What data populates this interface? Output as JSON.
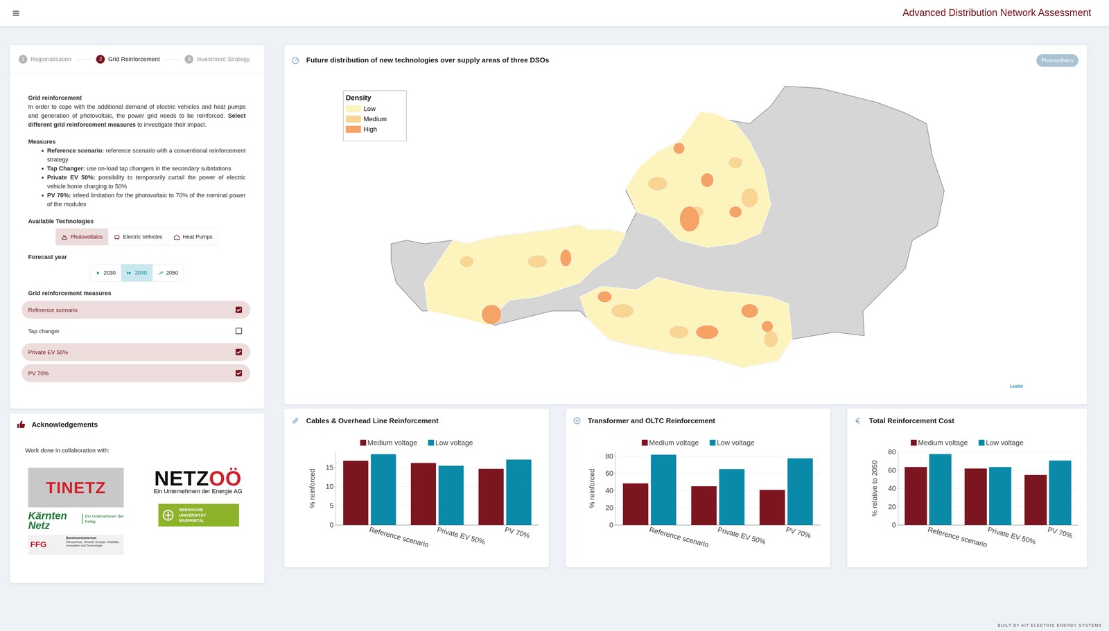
{
  "header": {
    "title": "Advanced Distribution Network Assessment"
  },
  "footer": "BUILT BY AIT ELECTRIC ENERGY SYSTEMS",
  "stepper": [
    {
      "number": 1,
      "label": "Regionalisation",
      "active": false
    },
    {
      "number": 2,
      "label": "Grid Reinforcement",
      "active": true
    },
    {
      "number": 3,
      "label": "Investment Strategy",
      "active": false
    }
  ],
  "panel": {
    "heading": "Grid reinforcement",
    "intro": "In order to cope with the additional demand of electric vehicles and heat pumps and generation of photovoltaic, the power grid needs to be reinforced.",
    "intro_bold": "Select different grid reinforcement measures",
    "intro_end": "to investigate their impact.",
    "measures_heading": "Measures",
    "measures": [
      {
        "name": "Reference scenario:",
        "text": "reference scenario with a conventional reinforcement strategy"
      },
      {
        "name": "Tap Changer:",
        "text": "use on-load tap changers in the secondary substations"
      },
      {
        "name": "Private EV 50%:",
        "text": "possibility to temporarily curtail the power of electric vehicle home charging to 50%"
      },
      {
        "name": "PV 70%:",
        "text": "infeed limitation for the photovoltaic to 70% of the nominal power of the modules"
      }
    ],
    "technologies_heading": "Available Technologies",
    "technologies": [
      {
        "label": "Photovoltaics",
        "active": true
      },
      {
        "label": "Electric Vehicles",
        "active": false
      },
      {
        "label": "Heat Pumps",
        "active": false
      }
    ],
    "year_heading": "Forecast year",
    "years": [
      {
        "label": "2030",
        "active": false
      },
      {
        "label": "2040",
        "active": true
      },
      {
        "label": "2050",
        "active": false
      }
    ],
    "reinforcement_heading": "Grid reinforcement measures",
    "reinforcement_measures": [
      {
        "label": "Reference scenario",
        "checked": true
      },
      {
        "label": "Tap changer",
        "checked": false
      },
      {
        "label": "Private EV 50%",
        "checked": true
      },
      {
        "label": "PV 70%",
        "checked": true
      }
    ]
  },
  "acknowledgements": {
    "title": "Acknowledgements",
    "text": "Work done in collaboration with:",
    "logos": {
      "tinetz": "TINETZ",
      "netzooe": {
        "name": "NETZOÖ",
        "subtitle": "Ein Unternehmen der Energie AG"
      },
      "kaernten": {
        "name": "Kärnten Netz",
        "subtitle": "Ein Unternehmen der Kelag"
      },
      "wuppertal": [
        "BERGISCHE",
        "UNIVERSITÄT",
        "WUPPERTAL"
      ],
      "ffg": {
        "name": "FFG",
        "ministry": "Bundesministerium",
        "subtitle": "Klimaschutz, Umwelt, Energie, Mobilität, Innovation und Technologie"
      }
    }
  },
  "map": {
    "title": "Future distribution of new technologies over supply areas of three DSOs",
    "badge": "Photovoltaics",
    "legend": {
      "title": "Density",
      "levels": [
        {
          "label": "Low",
          "color": "#fdf4bd"
        },
        {
          "label": "Medium",
          "color": "#f8d593"
        },
        {
          "label": "High",
          "color": "#f5a366"
        }
      ]
    },
    "attribution": "Leaflet"
  },
  "chart_data": [
    {
      "type": "bar",
      "title": "Cables & Overhead Line Reinforcement",
      "y_label": "% reinforced",
      "categories": [
        "Reference scenario",
        "Private EV 50%",
        "PV 70%"
      ],
      "series": [
        {
          "name": "Medium voltage",
          "color": "#7b1520",
          "values": [
            16.7,
            16.1,
            14.6
          ]
        },
        {
          "name": "Low voltage",
          "color": "#0a8aa8",
          "values": [
            18.4,
            15.4,
            17.0
          ]
        }
      ],
      "ylim": [
        0,
        19
      ],
      "yticks": [
        0,
        5,
        10,
        15
      ],
      "grid": true,
      "legend": "top"
    },
    {
      "type": "bar",
      "title": "Transformer and OLTC Reinforcement",
      "y_label": "% reinforced",
      "categories": [
        "Reference scenario",
        "Private EV 50%",
        "PV 70%"
      ],
      "series": [
        {
          "name": "Medium voltage",
          "color": "#7b1520",
          "values": [
            48.3,
            45.0,
            40.8
          ]
        },
        {
          "name": "Low voltage",
          "color": "#0a8aa8",
          "values": [
            81.7,
            65.0,
            77.5
          ]
        }
      ],
      "ylim": [
        0,
        85
      ],
      "yticks": [
        0,
        20,
        40,
        60,
        80
      ],
      "grid": true,
      "legend": "top"
    },
    {
      "type": "bar",
      "title": "Total Reinforcement Cost",
      "y_label": "% relative to 2050",
      "categories": [
        "Reference scenario",
        "Private EV 50%",
        "PV 70%"
      ],
      "series": [
        {
          "name": "Medium voltage",
          "color": "#7b1520",
          "values": [
            63.4,
            61.8,
            54.7
          ]
        },
        {
          "name": "Low voltage",
          "color": "#0a8aa8",
          "values": [
            77.6,
            63.4,
            70.5
          ]
        }
      ],
      "ylim": [
        0,
        80
      ],
      "yticks": [
        0,
        20,
        40,
        60,
        80
      ],
      "grid": true,
      "legend": "top"
    }
  ]
}
